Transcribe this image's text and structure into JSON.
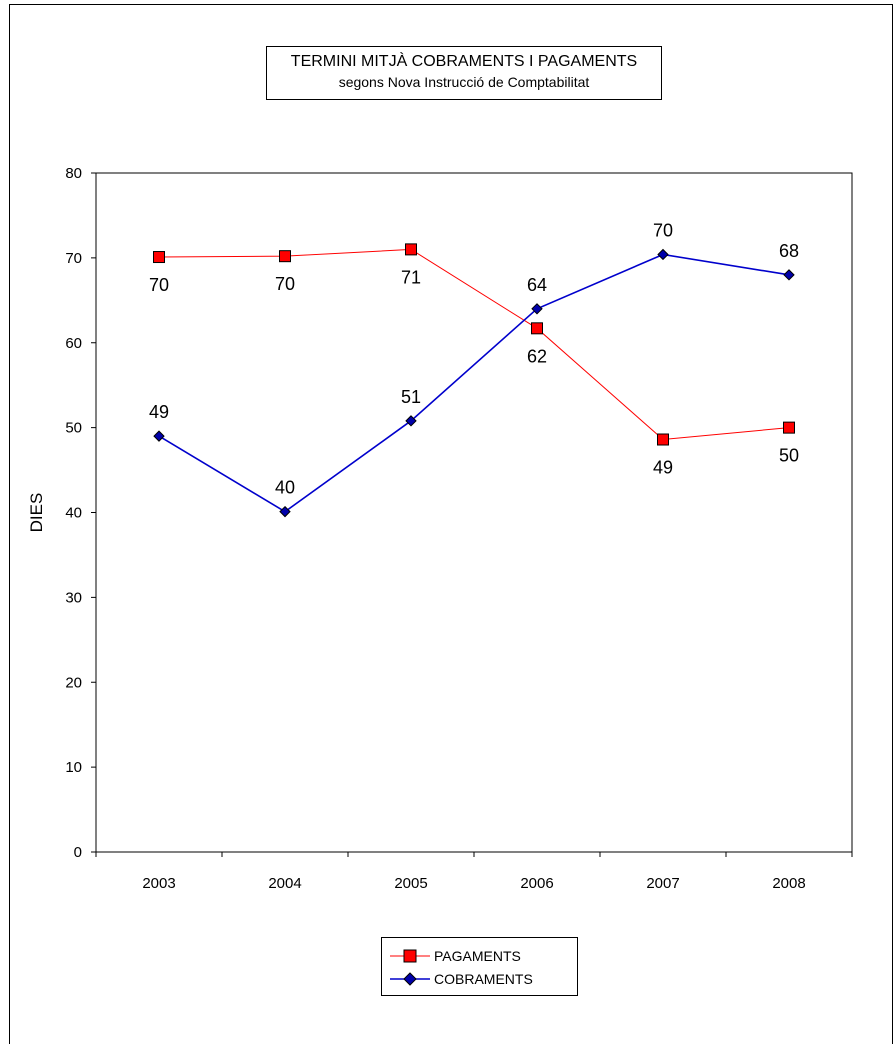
{
  "chart_data": {
    "type": "line",
    "title": "TERMINI MITJÀ COBRAMENTS I PAGAMENTS",
    "subtitle": "segons Nova Instrucció de Comptabilitat",
    "xlabel": "",
    "ylabel": "DIES",
    "ylim": [
      0,
      80
    ],
    "yticks": [
      "0",
      "10",
      "20",
      "30",
      "40",
      "50",
      "60",
      "70",
      "80"
    ],
    "categories": [
      "2003",
      "2004",
      "2005",
      "2006",
      "2007",
      "2008"
    ],
    "grid": false,
    "legend_position": "bottom",
    "series": [
      {
        "name": "PAGAMENTS",
        "color": "#ff0000",
        "marker_fill": "#ff0000",
        "marker": "square",
        "values": [
          70.1,
          70.2,
          71.0,
          61.7,
          48.6,
          50.0
        ],
        "labels": [
          "70",
          "70",
          "71",
          "62",
          "49",
          "50"
        ],
        "label_position": [
          "below",
          "below",
          "below",
          "below",
          "below",
          "below"
        ]
      },
      {
        "name": "COBRAMENTS",
        "color": "#0000cc",
        "marker_fill": "#0000aa",
        "marker": "diamond",
        "values": [
          49.0,
          40.1,
          50.8,
          64.0,
          70.4,
          68.0
        ],
        "labels": [
          "49",
          "40",
          "51",
          "64",
          "70",
          "68"
        ],
        "label_position": [
          "above",
          "above",
          "above",
          "above",
          "above",
          "above"
        ]
      }
    ]
  }
}
